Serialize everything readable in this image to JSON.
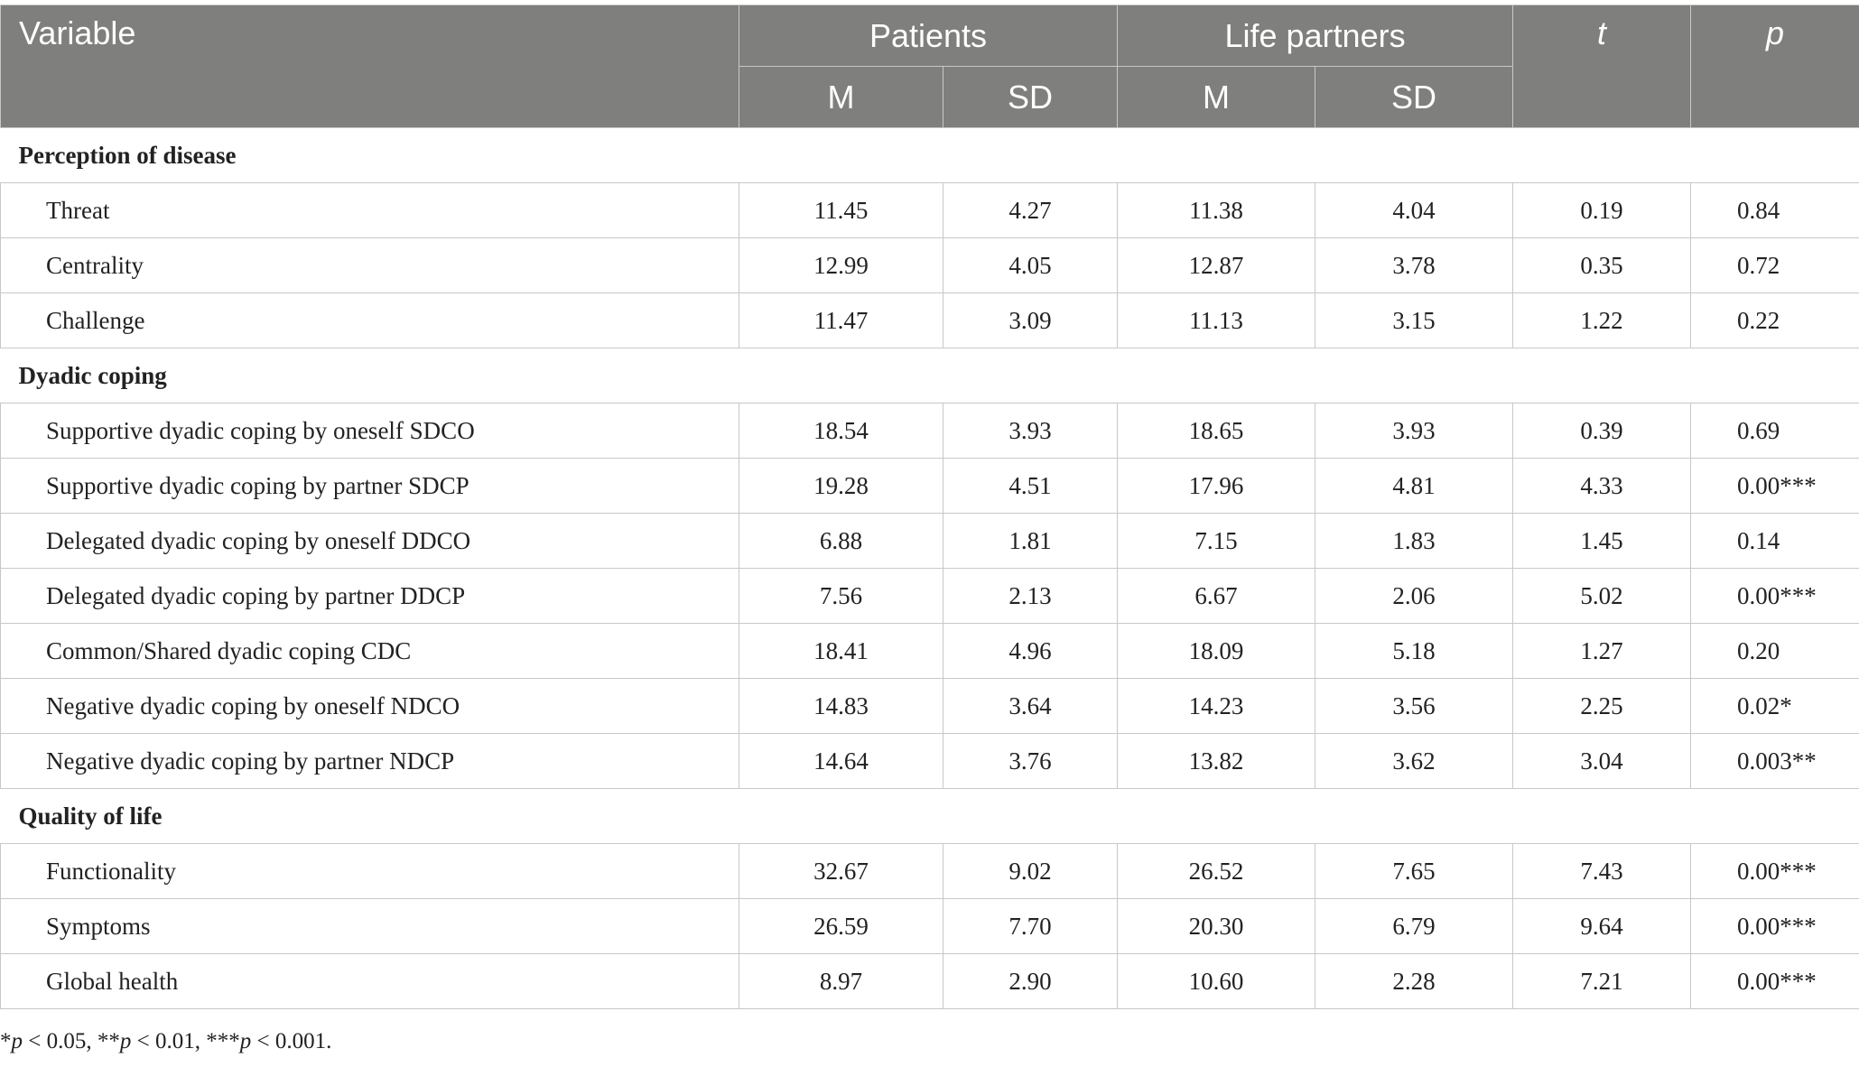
{
  "header": {
    "variable": "Variable",
    "patients": "Patients",
    "partners": "Life partners",
    "t": "t",
    "p": "p",
    "m": "M",
    "sd": "SD"
  },
  "sections": [
    {
      "title": "Perception of disease",
      "rows": [
        {
          "label": "Threat",
          "pm": "11.45",
          "psd": "4.27",
          "lm": "11.38",
          "lsd": "4.04",
          "t": "0.19",
          "p": "0.84"
        },
        {
          "label": "Centrality",
          "pm": "12.99",
          "psd": "4.05",
          "lm": "12.87",
          "lsd": "3.78",
          "t": "0.35",
          "p": "0.72"
        },
        {
          "label": "Challenge",
          "pm": "11.47",
          "psd": "3.09",
          "lm": "11.13",
          "lsd": "3.15",
          "t": "1.22",
          "p": "0.22"
        }
      ]
    },
    {
      "title": "Dyadic coping",
      "rows": [
        {
          "label": "Supportive dyadic coping by oneself SDCO",
          "pm": "18.54",
          "psd": "3.93",
          "lm": "18.65",
          "lsd": "3.93",
          "t": "0.39",
          "p": "0.69"
        },
        {
          "label": "Supportive dyadic coping by partner SDCP",
          "pm": "19.28",
          "psd": "4.51",
          "lm": "17.96",
          "lsd": "4.81",
          "t": "4.33",
          "p": "0.00***"
        },
        {
          "label": "Delegated dyadic coping by oneself DDCO",
          "pm": "6.88",
          "psd": "1.81",
          "lm": "7.15",
          "lsd": "1.83",
          "t": "1.45",
          "p": "0.14"
        },
        {
          "label": "Delegated dyadic coping by partner DDCP",
          "pm": "7.56",
          "psd": "2.13",
          "lm": "6.67",
          "lsd": "2.06",
          "t": "5.02",
          "p": "0.00***"
        },
        {
          "label": "Common/Shared dyadic coping CDC",
          "pm": "18.41",
          "psd": "4.96",
          "lm": "18.09",
          "lsd": "5.18",
          "t": "1.27",
          "p": "0.20"
        },
        {
          "label": "Negative dyadic coping by oneself NDCO",
          "pm": "14.83",
          "psd": "3.64",
          "lm": "14.23",
          "lsd": "3.56",
          "t": "2.25",
          "p": "0.02*"
        },
        {
          "label": "Negative dyadic coping by partner NDCP",
          "pm": "14.64",
          "psd": "3.76",
          "lm": "13.82",
          "lsd": "3.62",
          "t": "3.04",
          "p": "0.003**"
        }
      ]
    },
    {
      "title": "Quality of life",
      "rows": [
        {
          "label": "Functionality",
          "pm": "32.67",
          "psd": "9.02",
          "lm": "26.52",
          "lsd": "7.65",
          "t": "7.43",
          "p": "0.00***"
        },
        {
          "label": "Symptoms",
          "pm": "26.59",
          "psd": "7.70",
          "lm": "20.30",
          "lsd": "6.79",
          "t": "9.64",
          "p": "0.00***"
        },
        {
          "label": "Global health",
          "pm": "8.97",
          "psd": "2.90",
          "lm": "10.60",
          "lsd": "2.28",
          "t": "7.21",
          "p": "0.00***"
        }
      ]
    }
  ],
  "footnote": [
    {
      "text": "*",
      "italic": false
    },
    {
      "text": "p",
      "italic": true
    },
    {
      "text": " < 0.05, **",
      "italic": false
    },
    {
      "text": "p",
      "italic": true
    },
    {
      "text": " < 0.01, ***",
      "italic": false
    },
    {
      "text": "p",
      "italic": true
    },
    {
      "text": " < 0.001.",
      "italic": false
    }
  ]
}
